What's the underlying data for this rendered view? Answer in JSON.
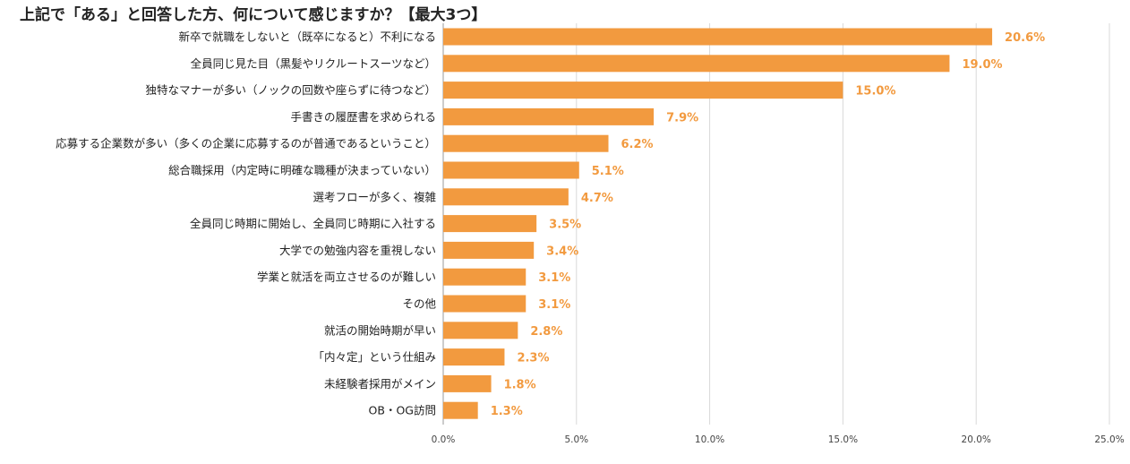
{
  "chart_data": {
    "type": "bar",
    "orientation": "horizontal",
    "title": "上記で「ある」と回答した方、何について感じますか？【最大3つ】",
    "categories": [
      "新卒で就職をしないと（既卒になると）不利になる",
      "全員同じ見た目（黒髪やリクルートスーツなど）",
      "独特なマナーが多い（ノックの回数や座らずに待つなど）",
      "手書きの履歴書を求められる",
      "応募する企業数が多い（多くの企業に応募するのが普通であるということ）",
      "総合職採用（内定時に明確な職種が決まっていない）",
      "選考フローが多く、複雑",
      "全員同じ時期に開始し、全員同じ時期に入社する",
      "大学での勉強内容を重視しない",
      "学業と就活を両立させるのが難しい",
      "その他",
      "就活の開始時期が早い",
      "「内々定」という仕組み",
      "未経験者採用がメイン",
      "OB・OG訪問"
    ],
    "values": [
      20.6,
      19.0,
      15.0,
      7.9,
      6.2,
      5.1,
      4.7,
      3.5,
      3.4,
      3.1,
      3.1,
      2.8,
      2.3,
      1.8,
      1.3
    ],
    "value_labels": [
      "20.6%",
      "19.0%",
      "15.0%",
      "7.9%",
      "6.2%",
      "5.1%",
      "4.7%",
      "3.5%",
      "3.4%",
      "3.1%",
      "3.1%",
      "2.8%",
      "2.3%",
      "1.8%",
      "1.3%"
    ],
    "xlim": [
      0,
      25
    ],
    "xticks": [
      "0.0%",
      "5.0%",
      "10.0%",
      "15.0%",
      "20.0%",
      "25.0%"
    ],
    "xlabel": "",
    "ylabel": "",
    "grid": true,
    "legend": "none",
    "bar_color": "#f29a3f",
    "label_color": "#f29a3f",
    "grid_color": "#d9d9d9"
  }
}
